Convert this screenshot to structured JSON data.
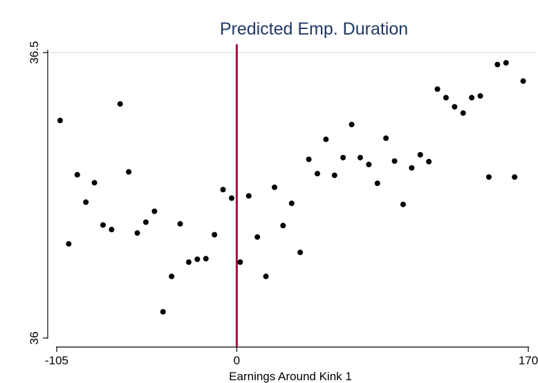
{
  "chart_data": {
    "type": "scatter",
    "title": "Predicted Emp. Duration",
    "xlabel": "Earnings Around Kink 1",
    "ylabel": "",
    "xlim": [
      -105,
      170
    ],
    "ylim": [
      36,
      36.5
    ],
    "x_ticks": [
      {
        "value": -105,
        "label": "-105"
      },
      {
        "value": 0,
        "label": "0"
      },
      {
        "value": 170,
        "label": "170"
      }
    ],
    "y_ticks": [
      {
        "value": 36,
        "label": "36"
      },
      {
        "value": 36.5,
        "label": "36.5"
      }
    ],
    "grid": "horizontal at 36.5",
    "vertical_line": {
      "x": 0,
      "color": "#a01040"
    },
    "marker_color": "#000000",
    "points": [
      [
        -103,
        36.381
      ],
      [
        -98,
        36.165
      ],
      [
        -93,
        36.286
      ],
      [
        -88,
        36.238
      ],
      [
        -83,
        36.272
      ],
      [
        -78,
        36.198
      ],
      [
        -73,
        36.19
      ],
      [
        -68,
        36.41
      ],
      [
        -63,
        36.291
      ],
      [
        -58,
        36.184
      ],
      [
        -53,
        36.203
      ],
      [
        -48,
        36.222
      ],
      [
        -43,
        36.046
      ],
      [
        -38,
        36.108
      ],
      [
        -33,
        36.2
      ],
      [
        -28,
        36.133
      ],
      [
        -23,
        36.138
      ],
      [
        -18,
        36.139
      ],
      [
        -13,
        36.181
      ],
      [
        -8,
        36.26
      ],
      [
        -3,
        36.245
      ],
      [
        2,
        36.133
      ],
      [
        7,
        36.249
      ],
      [
        12,
        36.177
      ],
      [
        17,
        36.108
      ],
      [
        22,
        36.264
      ],
      [
        27,
        36.197
      ],
      [
        32,
        36.236
      ],
      [
        37,
        36.15
      ],
      [
        42,
        36.313
      ],
      [
        47,
        36.288
      ],
      [
        52,
        36.348
      ],
      [
        57,
        36.285
      ],
      [
        62,
        36.316
      ],
      [
        67,
        36.374
      ],
      [
        72,
        36.316
      ],
      [
        77,
        36.304
      ],
      [
        82,
        36.271
      ],
      [
        87,
        36.35
      ],
      [
        92,
        36.31
      ],
      [
        97,
        36.234
      ],
      [
        102,
        36.298
      ],
      [
        107,
        36.321
      ],
      [
        112,
        36.309
      ],
      [
        117,
        36.436
      ],
      [
        122,
        36.421
      ],
      [
        127,
        36.405
      ],
      [
        132,
        36.394
      ],
      [
        137,
        36.421
      ],
      [
        142,
        36.424
      ],
      [
        147,
        36.282
      ],
      [
        152,
        36.479
      ],
      [
        157,
        36.482
      ],
      [
        162,
        36.282
      ],
      [
        167,
        36.45
      ]
    ]
  }
}
